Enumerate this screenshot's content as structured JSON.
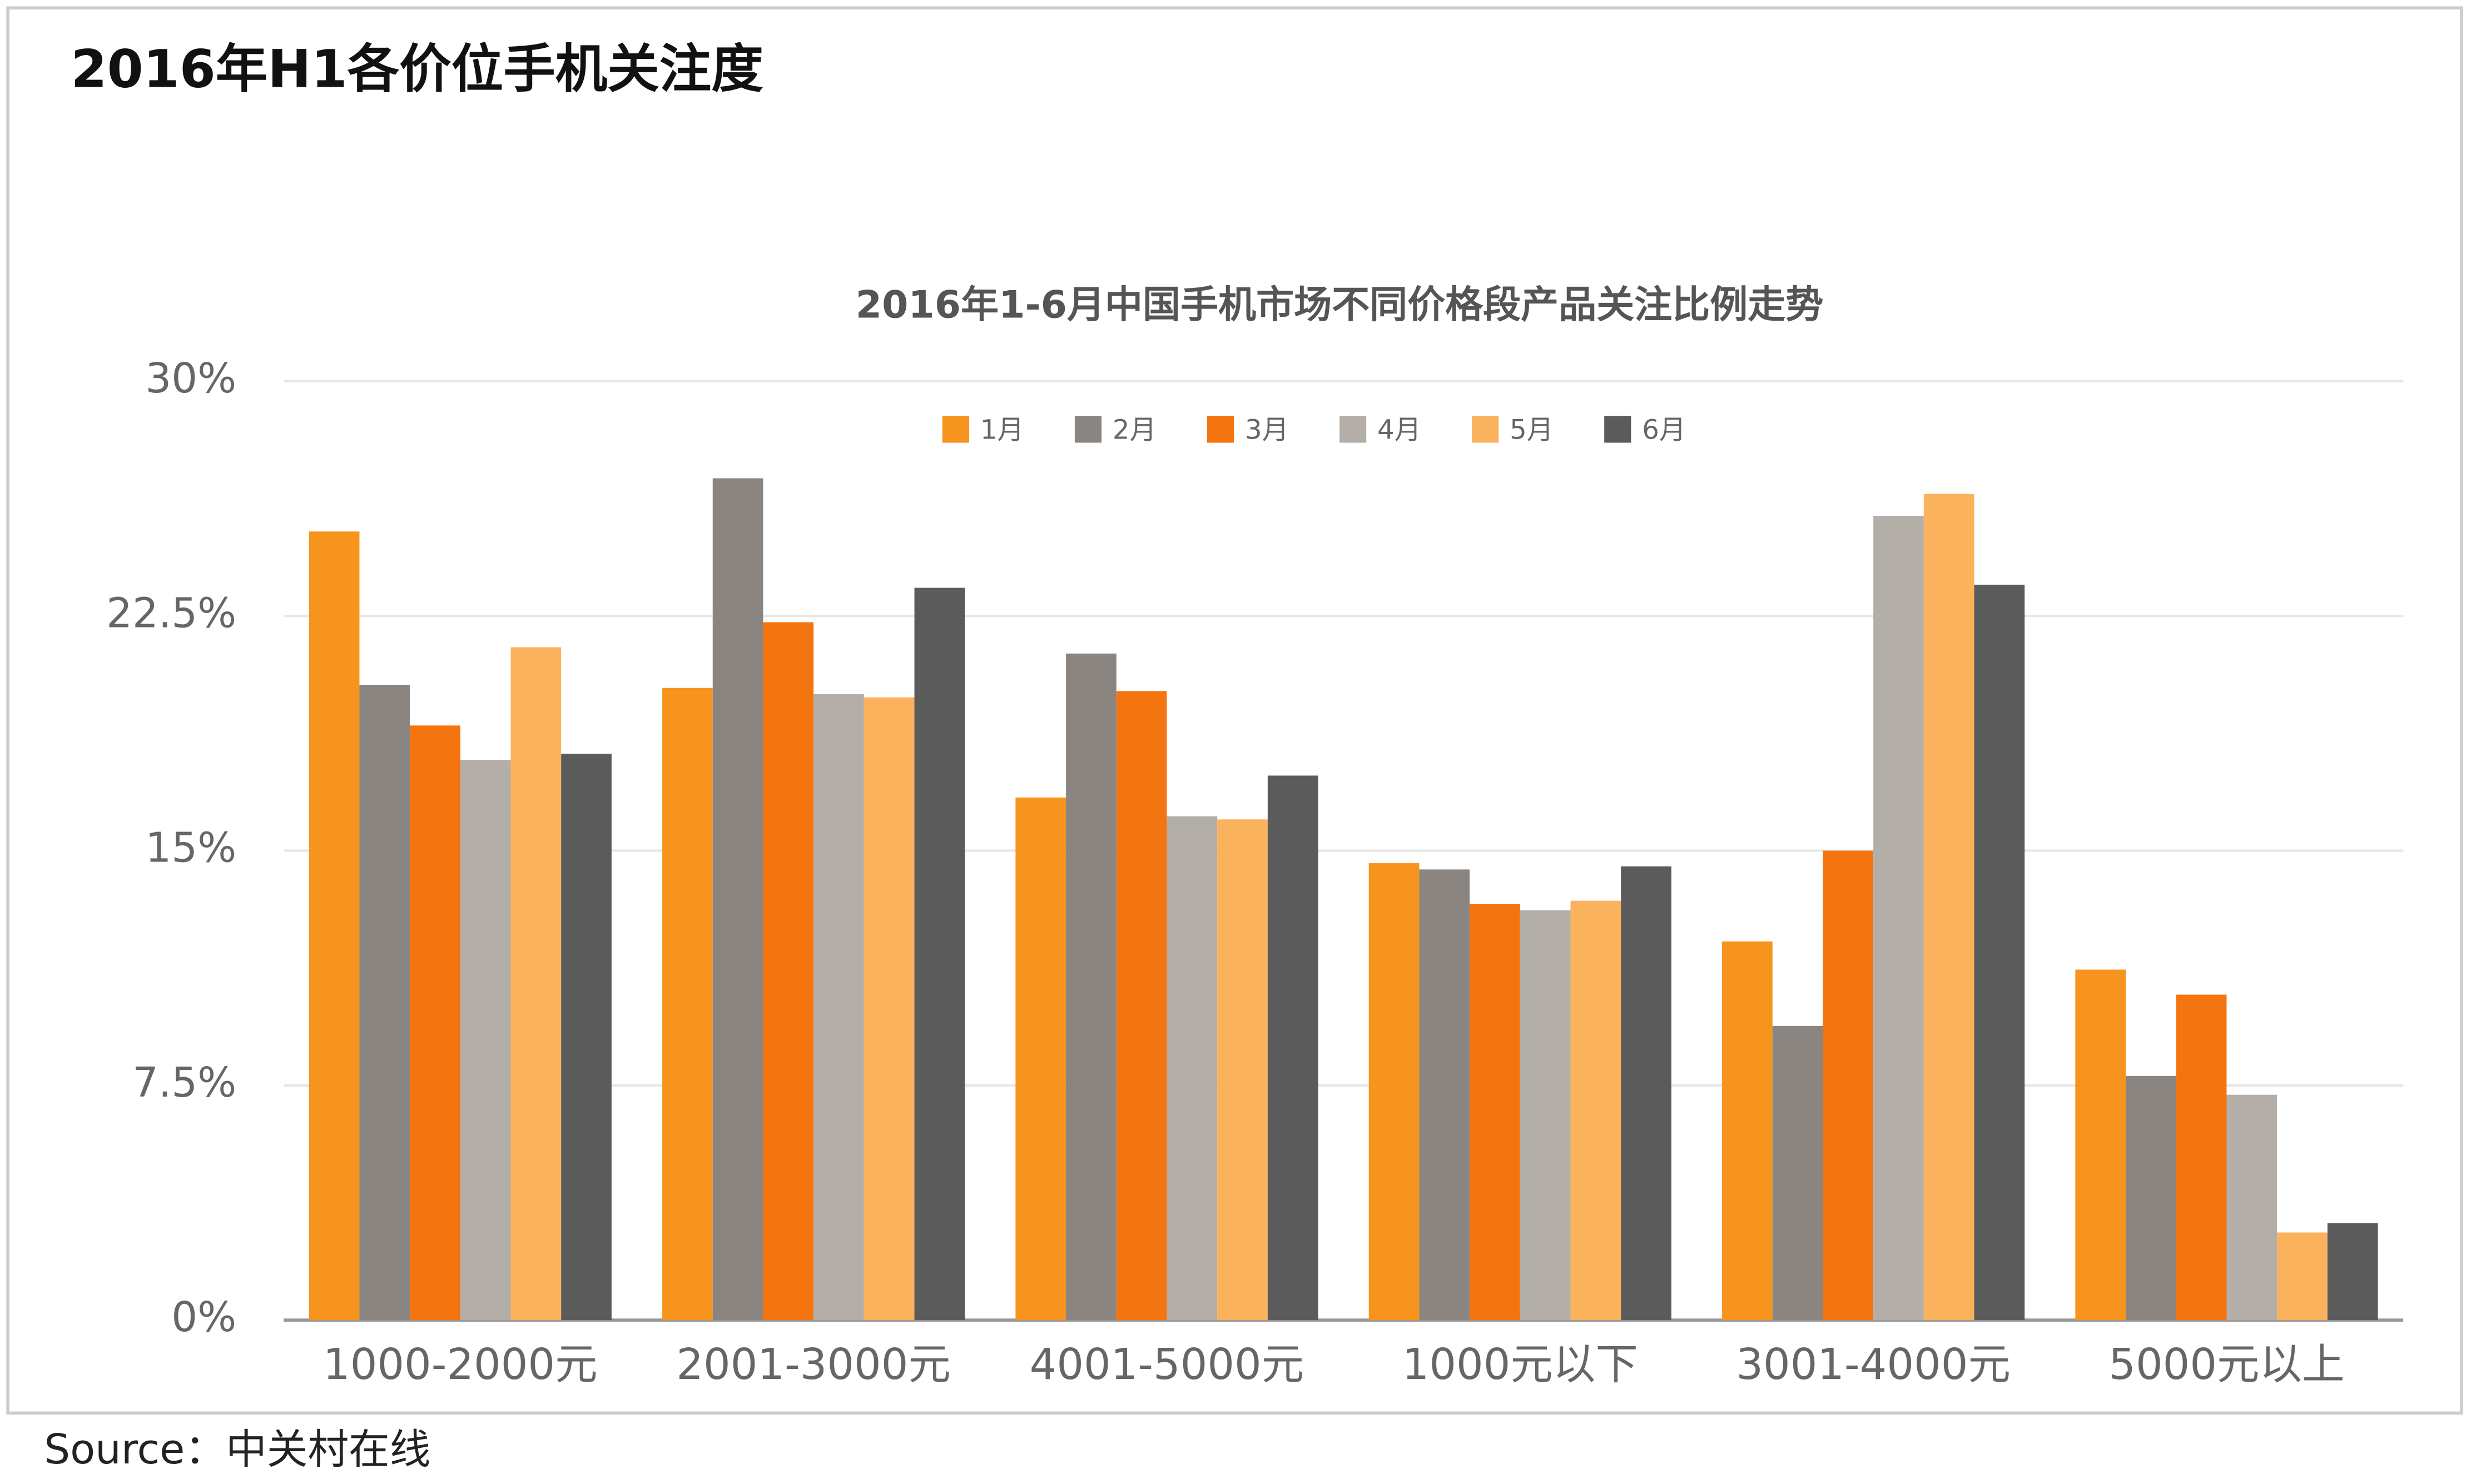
{
  "header": {
    "title": "2016年H1各价位手机关注度"
  },
  "source": "Source：中关村在线",
  "chart_data": {
    "type": "bar",
    "title": "2016年1-6月中国手机市场不同价格段产品关注比例走势",
    "categories": [
      "1000-2000元",
      "2001-3000元",
      "4001-5000元",
      "1000元以下",
      "3001-4000元",
      "5000元以上"
    ],
    "series": [
      {
        "name": "1月",
        "color": "#f7941d",
        "values": [
          25.2,
          20.2,
          16.7,
          14.6,
          12.1,
          11.2
        ]
      },
      {
        "name": "2月",
        "color": "#8a8580",
        "values": [
          20.3,
          26.9,
          21.3,
          14.4,
          9.4,
          7.8
        ]
      },
      {
        "name": "3月",
        "color": "#f47410",
        "values": [
          19.0,
          22.3,
          20.1,
          13.3,
          15.0,
          10.4
        ]
      },
      {
        "name": "4月",
        "color": "#b3aea8",
        "values": [
          17.9,
          20.0,
          16.1,
          13.1,
          25.7,
          7.2
        ]
      },
      {
        "name": "5月",
        "color": "#fbb25c",
        "values": [
          21.5,
          19.9,
          16.0,
          13.4,
          26.4,
          2.8
        ]
      },
      {
        "name": "6月",
        "color": "#5b5b5b",
        "values": [
          18.1,
          23.4,
          17.4,
          14.5,
          23.5,
          3.1
        ]
      }
    ],
    "ylim": [
      0,
      30
    ],
    "yticks": [
      {
        "value": 0,
        "label": "0%"
      },
      {
        "value": 7.5,
        "label": "7.5%"
      },
      {
        "value": 15,
        "label": "15%"
      },
      {
        "value": 22.5,
        "label": "22.5%"
      },
      {
        "value": 30,
        "label": "30%"
      }
    ],
    "grid": true,
    "legend": "top"
  }
}
